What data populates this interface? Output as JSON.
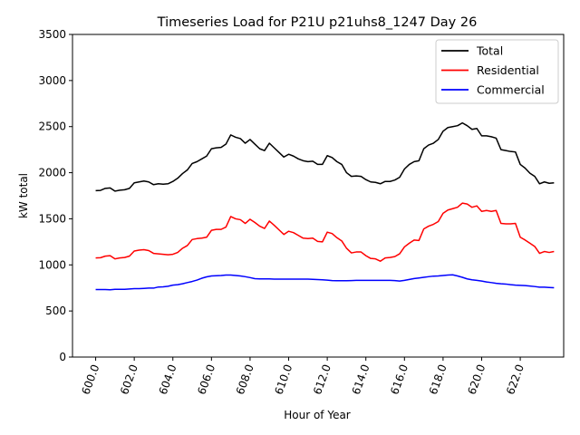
{
  "chart_data": {
    "type": "line",
    "title": "Timeseries Load for P21U p21uhs8_1247  Day 26",
    "xlabel": "Hour of Year",
    "ylabel": "kW total",
    "xlim": [
      598.8,
      624.25
    ],
    "ylim": [
      0,
      3500
    ],
    "xticks": [
      600,
      602,
      604,
      606,
      608,
      610,
      612,
      614,
      616,
      618,
      620,
      622
    ],
    "xtick_labels": [
      "600.0",
      "602.0",
      "604.0",
      "606.0",
      "608.0",
      "610.0",
      "612.0",
      "614.0",
      "616.0",
      "618.0",
      "620.0",
      "622.0"
    ],
    "yticks": [
      0,
      500,
      1000,
      1500,
      2000,
      2500,
      3000,
      3500
    ],
    "ytick_labels": [
      "0",
      "500",
      "1000",
      "1500",
      "2000",
      "2500",
      "3000",
      "3500"
    ],
    "grid": false,
    "legend_position": "upper right",
    "x": [
      600.0,
      600.25,
      600.5,
      600.75,
      601.0,
      601.25,
      601.5,
      601.75,
      602.0,
      602.25,
      602.5,
      602.75,
      603.0,
      603.25,
      603.5,
      603.75,
      604.0,
      604.25,
      604.5,
      604.75,
      605.0,
      605.25,
      605.5,
      605.75,
      606.0,
      606.25,
      606.5,
      606.75,
      607.0,
      607.25,
      607.5,
      607.75,
      608.0,
      608.25,
      608.5,
      608.75,
      609.0,
      609.25,
      609.5,
      609.75,
      610.0,
      610.25,
      610.5,
      610.75,
      611.0,
      611.25,
      611.5,
      611.75,
      612.0,
      612.25,
      612.5,
      612.75,
      613.0,
      613.25,
      613.5,
      613.75,
      614.0,
      614.25,
      614.5,
      614.75,
      615.0,
      615.25,
      615.5,
      615.75,
      616.0,
      616.25,
      616.5,
      616.75,
      617.0,
      617.25,
      617.5,
      617.75,
      618.0,
      618.25,
      618.5,
      618.75,
      619.0,
      619.25,
      619.5,
      619.75,
      620.0,
      620.25,
      620.5,
      620.75,
      621.0,
      621.25,
      621.5,
      621.75,
      622.0,
      622.25,
      622.5,
      622.75,
      623.0,
      623.25,
      623.5,
      623.75
    ],
    "series": [
      {
        "name": "Total",
        "color": "#000000",
        "values": [
          1805,
          1808,
          1830,
          1835,
          1800,
          1810,
          1815,
          1830,
          1890,
          1900,
          1910,
          1900,
          1870,
          1880,
          1875,
          1880,
          1905,
          1940,
          1990,
          2030,
          2100,
          2120,
          2150,
          2180,
          2260,
          2270,
          2275,
          2310,
          2410,
          2385,
          2370,
          2320,
          2360,
          2310,
          2260,
          2240,
          2320,
          2270,
          2220,
          2170,
          2200,
          2180,
          2150,
          2130,
          2120,
          2125,
          2090,
          2090,
          2185,
          2165,
          2120,
          2090,
          2000,
          1960,
          1965,
          1960,
          1925,
          1900,
          1895,
          1880,
          1905,
          1905,
          1920,
          1950,
          2040,
          2090,
          2120,
          2130,
          2260,
          2300,
          2320,
          2360,
          2450,
          2490,
          2500,
          2510,
          2540,
          2510,
          2470,
          2480,
          2400,
          2400,
          2390,
          2375,
          2250,
          2240,
          2230,
          2225,
          2090,
          2050,
          1995,
          1960,
          1880,
          1900,
          1885,
          1890
        ]
      },
      {
        "name": "Residential",
        "color": "#ff0000",
        "values": [
          1075,
          1078,
          1095,
          1100,
          1065,
          1075,
          1080,
          1095,
          1150,
          1160,
          1165,
          1155,
          1125,
          1120,
          1115,
          1110,
          1115,
          1135,
          1180,
          1210,
          1275,
          1285,
          1290,
          1300,
          1375,
          1385,
          1385,
          1410,
          1525,
          1500,
          1490,
          1450,
          1495,
          1460,
          1420,
          1395,
          1475,
          1430,
          1380,
          1330,
          1365,
          1350,
          1320,
          1290,
          1285,
          1290,
          1255,
          1250,
          1355,
          1340,
          1295,
          1260,
          1180,
          1130,
          1140,
          1140,
          1100,
          1070,
          1065,
          1040,
          1075,
          1080,
          1090,
          1120,
          1195,
          1235,
          1270,
          1265,
          1390,
          1420,
          1440,
          1470,
          1560,
          1595,
          1610,
          1625,
          1670,
          1660,
          1625,
          1640,
          1580,
          1590,
          1580,
          1590,
          1450,
          1445,
          1445,
          1450,
          1300,
          1270,
          1235,
          1200,
          1125,
          1145,
          1135,
          1145
        ]
      },
      {
        "name": "Commercial",
        "color": "#0000ff",
        "values": [
          733,
          733,
          733,
          730,
          735,
          735,
          735,
          738,
          742,
          742,
          745,
          748,
          748,
          760,
          762,
          768,
          780,
          785,
          795,
          808,
          820,
          835,
          855,
          870,
          880,
          882,
          885,
          890,
          890,
          885,
          880,
          872,
          862,
          850,
          848,
          848,
          848,
          846,
          846,
          846,
          846,
          846,
          845,
          845,
          845,
          843,
          840,
          838,
          835,
          830,
          828,
          828,
          828,
          830,
          832,
          832,
          832,
          832,
          832,
          832,
          832,
          832,
          830,
          825,
          832,
          842,
          852,
          858,
          865,
          872,
          878,
          880,
          885,
          890,
          892,
          880,
          865,
          848,
          838,
          832,
          825,
          815,
          808,
          800,
          795,
          792,
          785,
          780,
          778,
          775,
          770,
          765,
          758,
          758,
          755,
          752
        ]
      }
    ]
  }
}
